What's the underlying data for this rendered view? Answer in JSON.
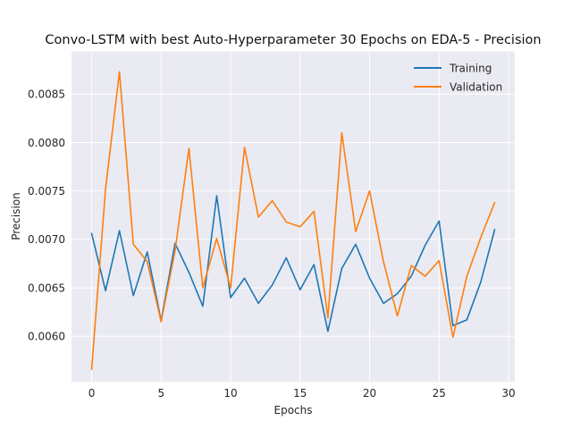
{
  "chart_data": {
    "type": "line",
    "title": "Convo-LSTM with best Auto-Hyperparameter 30 Epochs on EDA-5 - Precision",
    "xlabel": "Epochs",
    "ylabel": "Precision",
    "xlim": [
      -1.45,
      30.45
    ],
    "ylim": [
      0.00553,
      0.00894
    ],
    "xticks": [
      0,
      5,
      10,
      15,
      20,
      25,
      30
    ],
    "xtick_labels": [
      "0",
      "5",
      "10",
      "15",
      "20",
      "25",
      "30"
    ],
    "yticks": [
      0.006,
      0.0065,
      0.007,
      0.0075,
      0.008,
      0.0085
    ],
    "ytick_labels": [
      "0.0060",
      "0.0065",
      "0.0070",
      "0.0075",
      "0.0080",
      "0.0085"
    ],
    "grid": true,
    "legend_position": "top-right",
    "x": [
      0,
      1,
      2,
      3,
      4,
      5,
      6,
      7,
      8,
      9,
      10,
      11,
      12,
      13,
      14,
      15,
      16,
      17,
      18,
      19,
      20,
      21,
      22,
      23,
      24,
      25,
      26,
      27,
      28,
      29
    ],
    "series": [
      {
        "name": "Training",
        "color": "#1f77b4",
        "values": [
          0.00706,
          0.00647,
          0.00709,
          0.00642,
          0.00687,
          0.00616,
          0.00696,
          0.00666,
          0.00631,
          0.00745,
          0.0064,
          0.0066,
          0.00634,
          0.00653,
          0.00681,
          0.00648,
          0.00674,
          0.00605,
          0.0067,
          0.00695,
          0.0066,
          0.00634,
          0.00644,
          0.00662,
          0.00694,
          0.00719,
          0.00611,
          0.00617,
          0.00656,
          0.0071
        ]
      },
      {
        "name": "Validation",
        "color": "#ff7f0e",
        "values": [
          0.00566,
          0.00752,
          0.00873,
          0.00695,
          0.00677,
          0.00615,
          0.00688,
          0.00794,
          0.0065,
          0.00701,
          0.0065,
          0.00795,
          0.00723,
          0.0074,
          0.00718,
          0.00713,
          0.00729,
          0.00619,
          0.0081,
          0.00708,
          0.0075,
          0.00677,
          0.00621,
          0.00673,
          0.00662,
          0.00678,
          0.00599,
          0.00662,
          0.00702,
          0.00738
        ]
      }
    ]
  }
}
